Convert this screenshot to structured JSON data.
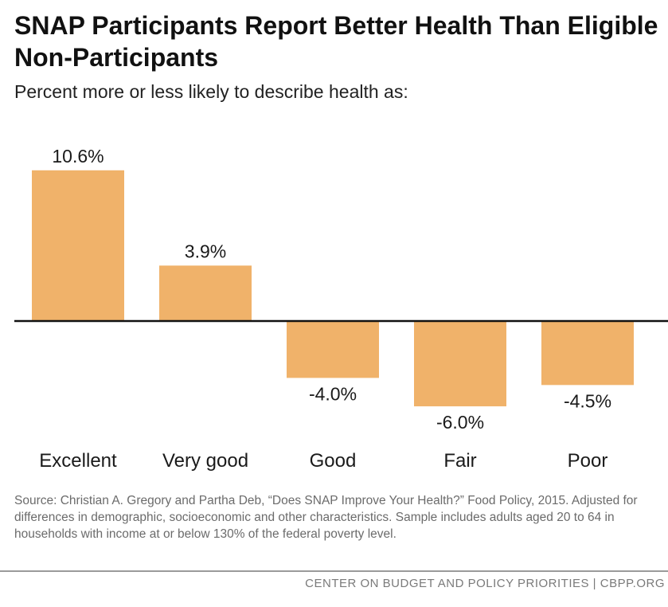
{
  "title": "SNAP Participants Report Better Health Than Eligible Non-Participants",
  "subtitle": "Percent more or less likely to describe health as:",
  "chart_data": {
    "type": "bar",
    "title": "SNAP Participants Report Better Health Than Eligible Non-Participants",
    "subtitle": "Percent more or less likely to describe health as:",
    "categories": [
      "Excellent",
      "Very good",
      "Good",
      "Fair",
      "Poor"
    ],
    "values": [
      10.6,
      3.9,
      -4.0,
      -6.0,
      -4.5
    ],
    "labels": [
      "10.6%",
      "3.9%",
      "-4.0%",
      "-6.0%",
      "-4.5%"
    ],
    "xlabel": "",
    "ylabel": "",
    "ylim": [
      -7,
      12
    ],
    "grid": false,
    "bar_color": "#f0b26a",
    "axis_color": "#111111"
  },
  "source": "Source: Christian A. Gregory and Partha Deb, “Does SNAP Improve Your Health?” Food Policy, 2015. Adjusted for differences in demographic, socioeconomic and other characteristics. Sample includes adults aged 20 to 64 in households with income at or below 130% of the federal poverty level.",
  "footer": "CENTER ON BUDGET AND POLICY PRIORITIES | CBPP.ORG"
}
